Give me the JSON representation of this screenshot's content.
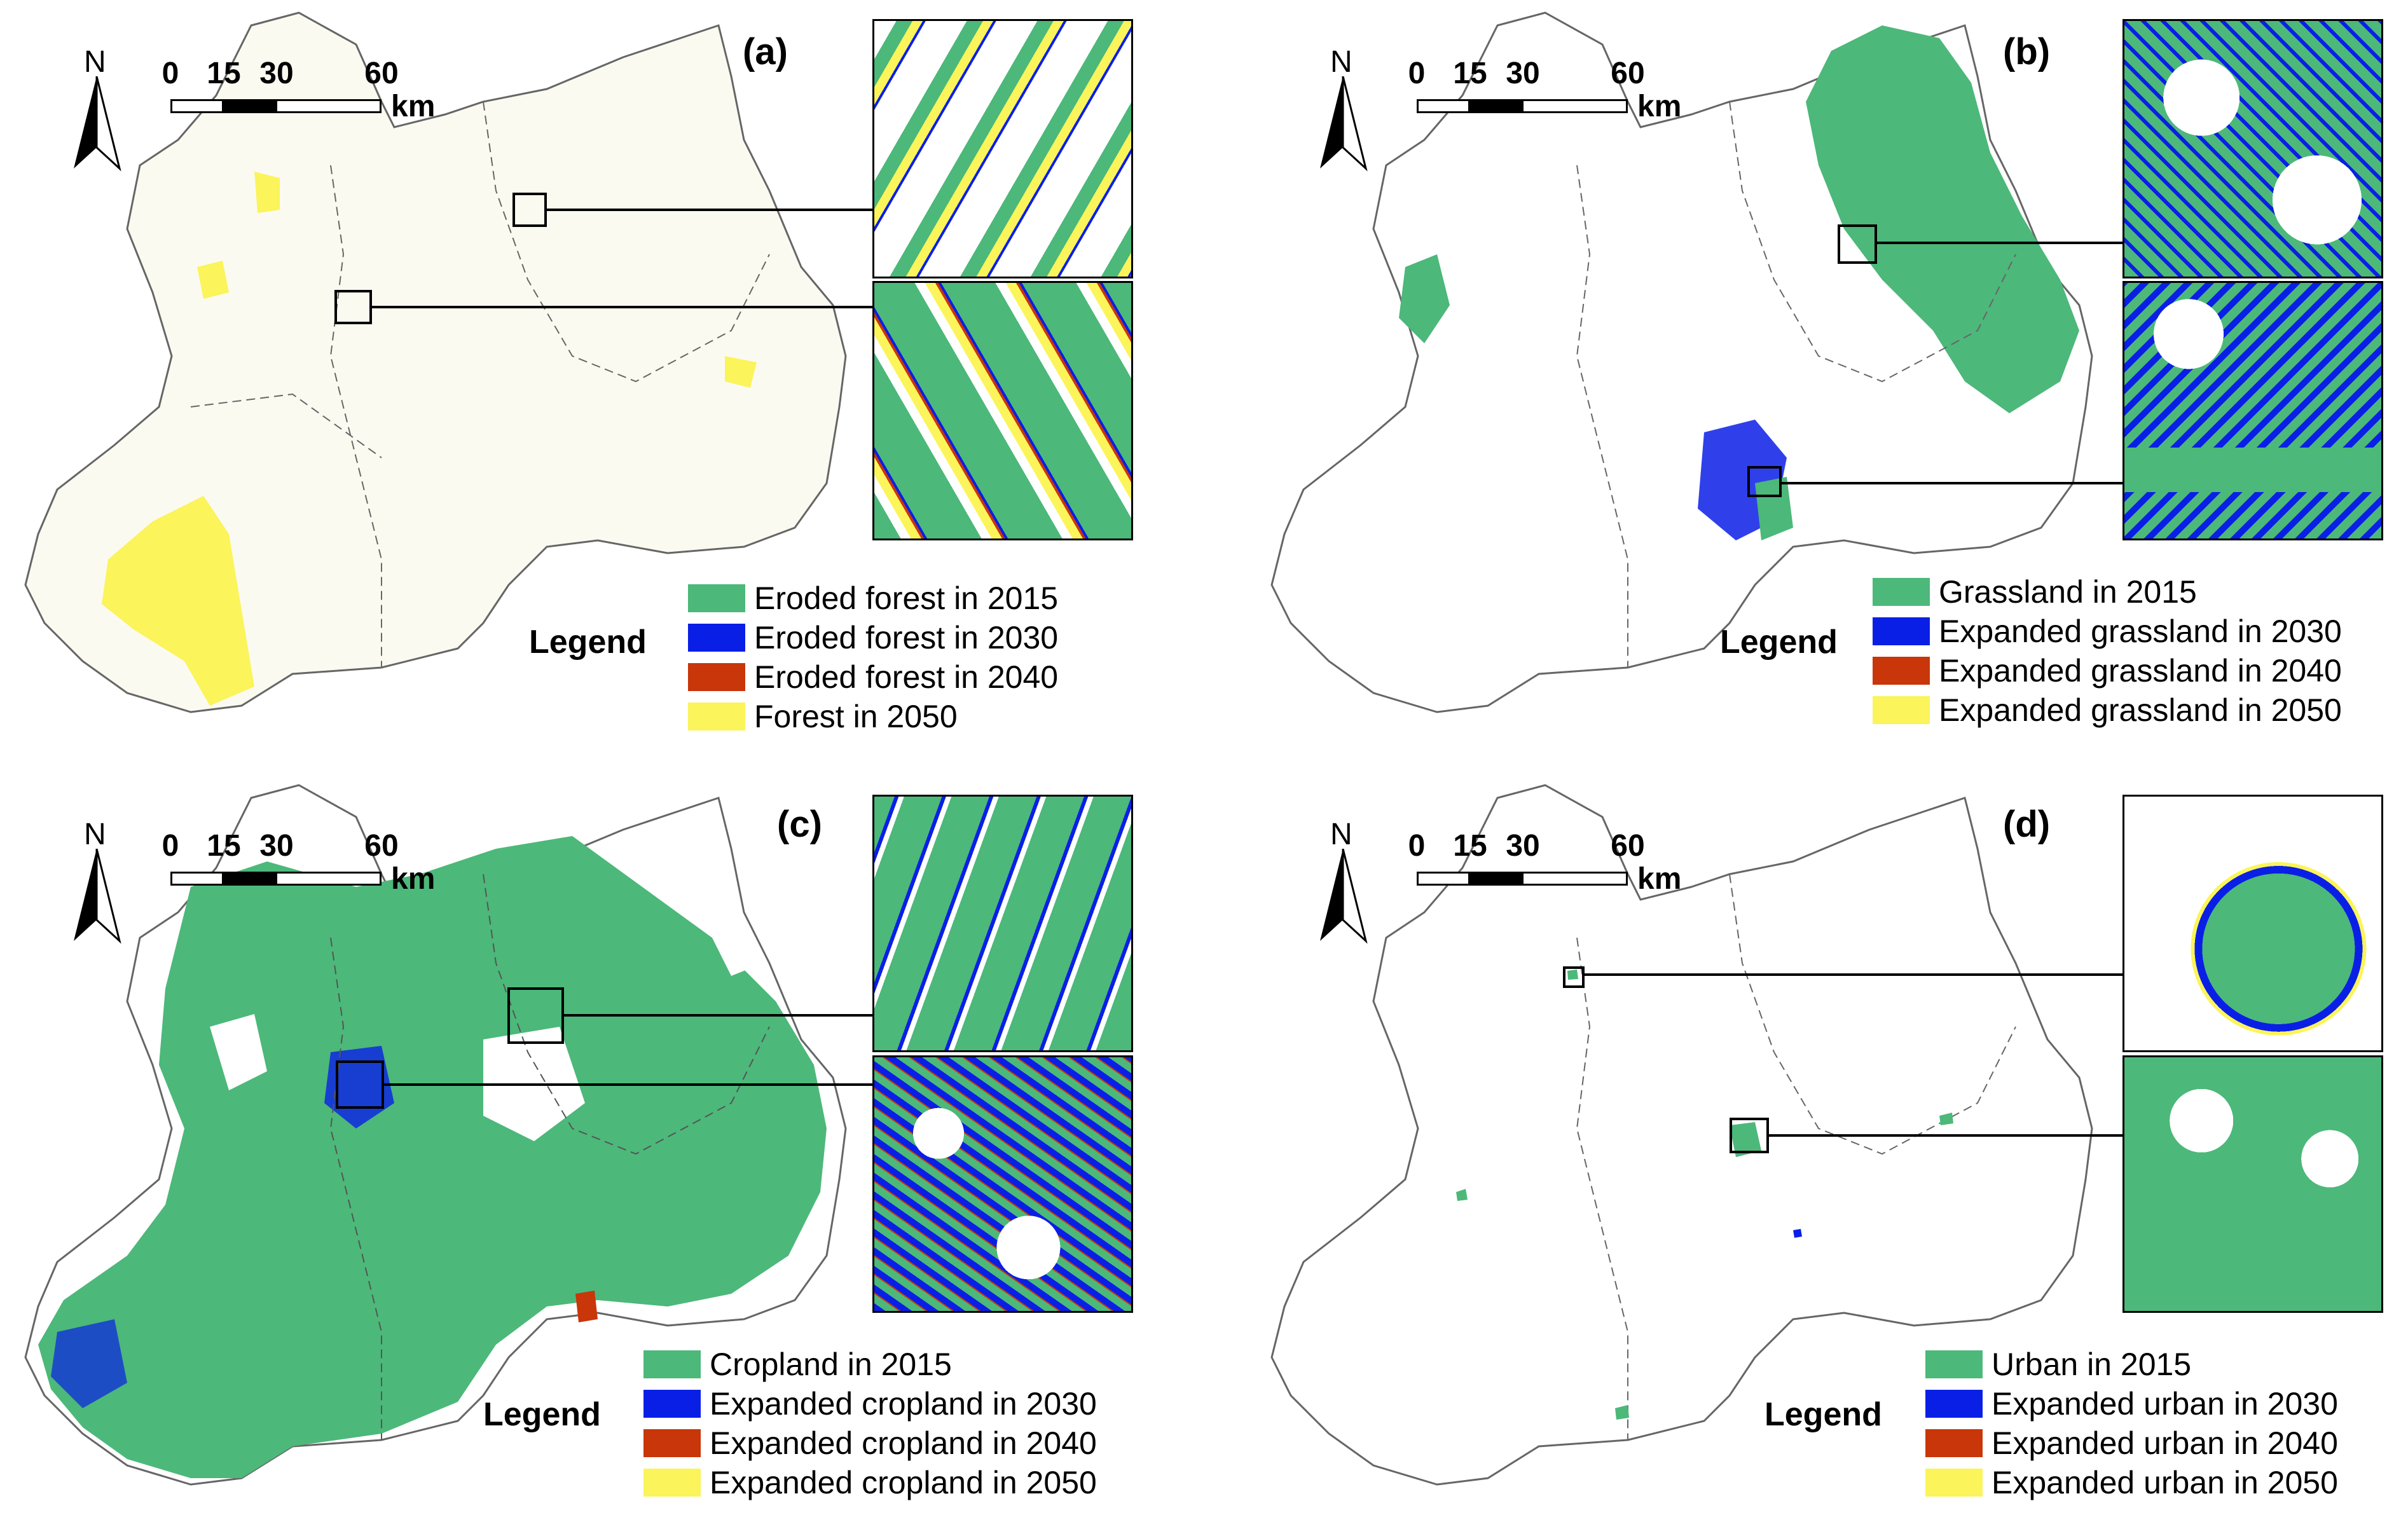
{
  "colors": {
    "green_2015": "#4cb87a",
    "blue_2030": "#0a1fe6",
    "red_2040": "#c8360a",
    "yellow_2050": "#fbf45a",
    "boundary": "#444444"
  },
  "common": {
    "north_label": "N",
    "scale_ticks": [
      "0",
      "15",
      "30",
      "60"
    ],
    "scale_unit": "km",
    "legend_title": "Legend"
  },
  "panels": [
    {
      "label": "(a)",
      "icon": "north-arrow-icon",
      "legend": [
        "Eroded forest in 2015",
        "Eroded forest in 2030",
        "Eroded forest in 2040",
        "Forest in 2050"
      ]
    },
    {
      "label": "(b)",
      "icon": "north-arrow-icon",
      "legend": [
        "Grassland in 2015",
        "Expanded grassland in 2030",
        "Expanded grassland in 2040",
        "Expanded grassland in 2050"
      ]
    },
    {
      "label": "(c)",
      "icon": "north-arrow-icon",
      "legend": [
        "Cropland in 2015",
        "Expanded cropland in 2030",
        "Expanded cropland in 2040",
        "Expanded cropland in 2050"
      ]
    },
    {
      "label": "(d)",
      "icon": "north-arrow-icon",
      "legend": [
        "Urban in 2015",
        "Expanded urban in 2030",
        "Expanded urban in 2040",
        "Expanded urban in 2050"
      ]
    }
  ]
}
